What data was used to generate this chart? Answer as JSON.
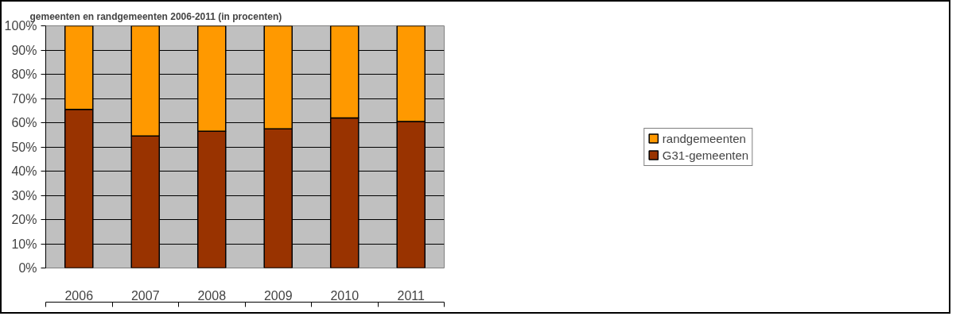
{
  "chart_data": {
    "type": "bar",
    "title": "gemeenten en randgemeenten 2006-2011 (in procenten)",
    "stacked": true,
    "categories": [
      "2006",
      "2007",
      "2008",
      "2009",
      "2010",
      "2011"
    ],
    "series": [
      {
        "name": "G31-gemeenten",
        "color": "#993300",
        "values": [
          65.5,
          54.5,
          56.5,
          57.5,
          62,
          60.5
        ]
      },
      {
        "name": "randgemeenten",
        "color": "#ff9900",
        "values": [
          34.5,
          45.5,
          43.5,
          42.5,
          38,
          39.5
        ]
      }
    ],
    "ylim": [
      0,
      100
    ],
    "yticks": [
      {
        "value": 0,
        "label": "0%"
      },
      {
        "value": 10,
        "label": "10%"
      },
      {
        "value": 20,
        "label": "20%"
      },
      {
        "value": 30,
        "label": "30%"
      },
      {
        "value": 40,
        "label": "40%"
      },
      {
        "value": 50,
        "label": "50%"
      },
      {
        "value": 60,
        "label": "60%"
      },
      {
        "value": 70,
        "label": "70%"
      },
      {
        "value": 80,
        "label": "80%"
      },
      {
        "value": 90,
        "label": "90%"
      },
      {
        "value": 100,
        "label": "100%"
      }
    ],
    "grid": "y",
    "legend": "right"
  }
}
